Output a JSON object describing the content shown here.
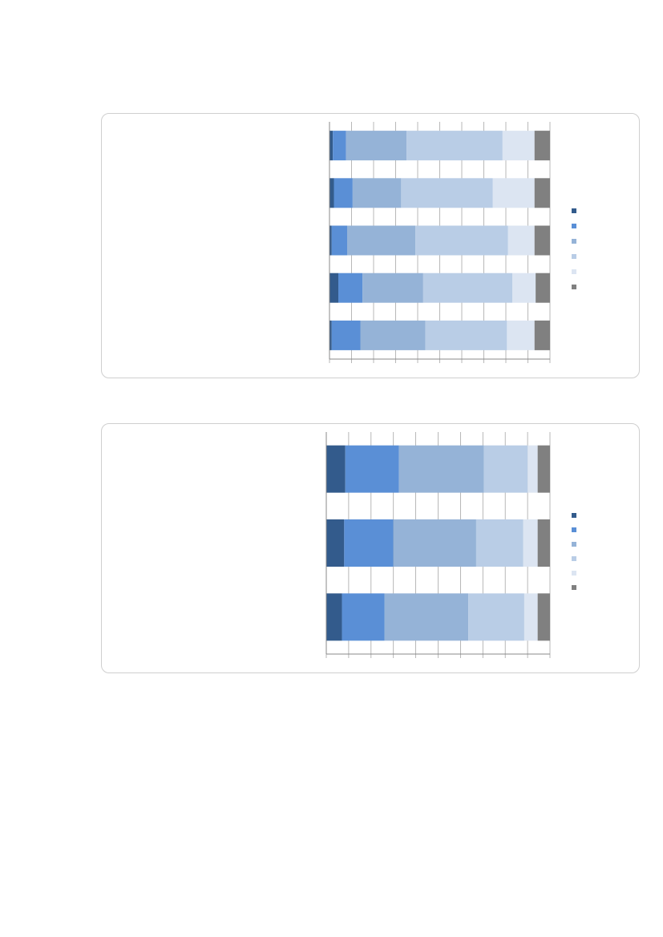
{
  "colors": {
    "series": [
      "#335b8c",
      "#5a8fd6",
      "#95b3d7",
      "#b9cde6",
      "#dce5f2",
      "#808080"
    ],
    "grid": "#a6a6a6",
    "axis": "#888888",
    "card_border": "#cfcfcf"
  },
  "chart_data": [
    {
      "type": "bar",
      "orientation": "horizontal",
      "stacked": "percent",
      "title": "",
      "xlabel": "",
      "ylabel": "",
      "xlim": [
        0,
        100
      ],
      "gridlines": 10,
      "grid": true,
      "legend": "right",
      "category_count": 5,
      "series": [
        {
          "values": [
            1.5,
            2,
            1,
            4,
            1
          ]
        },
        {
          "values": [
            6,
            8.5,
            7,
            11,
            13
          ]
        },
        {
          "values": [
            27.5,
            22,
            31,
            27.5,
            29.5
          ]
        },
        {
          "values": [
            43.5,
            41.5,
            42,
            40.5,
            37
          ]
        },
        {
          "values": [
            14.5,
            19,
            12,
            10.5,
            12.5
          ]
        },
        {
          "values": [
            7,
            7,
            7,
            6.5,
            7
          ]
        }
      ]
    },
    {
      "type": "bar",
      "orientation": "horizontal",
      "stacked": "percent",
      "title": "",
      "xlabel": "",
      "ylabel": "",
      "xlim": [
        0,
        100
      ],
      "gridlines": 10,
      "grid": true,
      "legend": "right",
      "category_count": 3,
      "series": [
        {
          "values": [
            8.5,
            8,
            7
          ]
        },
        {
          "values": [
            24,
            22,
            19
          ]
        },
        {
          "values": [
            38,
            37,
            37.5
          ]
        },
        {
          "values": [
            19.5,
            21,
            25
          ]
        },
        {
          "values": [
            4.5,
            6.5,
            6
          ]
        },
        {
          "values": [
            5.5,
            5.5,
            5.5
          ]
        }
      ]
    }
  ]
}
